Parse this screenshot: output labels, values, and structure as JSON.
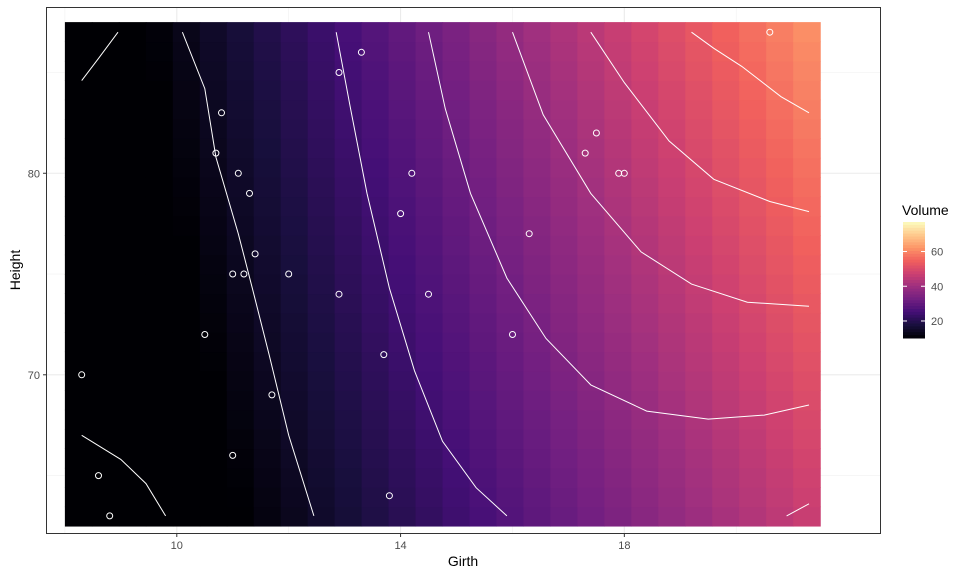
{
  "chart_data": {
    "type": "heatmap",
    "title": "",
    "xlabel": "Girth",
    "ylabel": "Height",
    "x_ticks": [
      10,
      14,
      18
    ],
    "y_ticks": [
      70,
      80
    ],
    "x_tick_labels": [
      "10",
      "14",
      "18"
    ],
    "y_tick_labels": [
      "70",
      "80"
    ],
    "xlim": [
      7.68,
      22.57
    ],
    "ylim": [
      62.15,
      88.2
    ],
    "grid": true,
    "fill": {
      "variable": "Volume",
      "model": "Volume ≈ -58 + 4.0·Girth + 0.36·Height + 0.03·(Girth-13.25)·(Height-76)",
      "x_range": [
        8,
        21.5
      ],
      "y_range": [
        62.5,
        87.5
      ],
      "grid_cols": 28,
      "grid_rows": 26,
      "palette": "magma",
      "palette_stops": [
        "#000004",
        "#180f3d",
        "#440f76",
        "#721f81",
        "#9e2f7f",
        "#cd4071",
        "#f1605d",
        "#fd9668",
        "#feca8d",
        "#fcfdbf"
      ]
    },
    "contours": {
      "color": "#ffffff",
      "lines": [
        [
          [
            8.3,
            84.6
          ],
          [
            8.6,
            85.7
          ],
          [
            8.95,
            87.0
          ]
        ],
        [
          [
            8.3,
            67.0
          ],
          [
            9.0,
            65.8
          ],
          [
            9.45,
            64.6
          ],
          [
            9.8,
            63.0
          ]
        ],
        [
          [
            10.1,
            87.0
          ],
          [
            10.5,
            84.2
          ],
          [
            10.7,
            80.8
          ],
          [
            11.1,
            77.0
          ],
          [
            11.35,
            74.3
          ],
          [
            11.65,
            71.0
          ],
          [
            12.0,
            67.0
          ],
          [
            12.45,
            63.0
          ]
        ],
        [
          [
            12.85,
            87.0
          ],
          [
            13.1,
            83.3
          ],
          [
            13.4,
            79.0
          ],
          [
            13.8,
            74.3
          ],
          [
            14.25,
            70.2
          ],
          [
            14.75,
            66.7
          ],
          [
            15.35,
            64.4
          ],
          [
            15.9,
            63.0
          ]
        ],
        [
          [
            14.5,
            87.0
          ],
          [
            14.8,
            83.2
          ],
          [
            15.25,
            79.0
          ],
          [
            15.9,
            74.8
          ],
          [
            16.6,
            71.8
          ],
          [
            17.4,
            69.5
          ],
          [
            18.4,
            68.2
          ],
          [
            19.5,
            67.8
          ],
          [
            20.5,
            68.0
          ],
          [
            21.3,
            68.5
          ]
        ],
        [
          [
            16.0,
            87.0
          ],
          [
            16.55,
            82.9
          ],
          [
            17.4,
            79.0
          ],
          [
            18.3,
            76.1
          ],
          [
            19.2,
            74.5
          ],
          [
            20.2,
            73.6
          ],
          [
            21.3,
            73.4
          ]
        ],
        [
          [
            17.4,
            87.0
          ],
          [
            18.0,
            84.5
          ],
          [
            18.8,
            81.6
          ],
          [
            19.6,
            79.7
          ],
          [
            20.6,
            78.6
          ],
          [
            21.3,
            78.1
          ]
        ],
        [
          [
            19.2,
            87.0
          ],
          [
            19.6,
            86.2
          ],
          [
            20.1,
            85.3
          ],
          [
            20.8,
            83.8
          ],
          [
            21.3,
            83.0
          ]
        ],
        [
          [
            20.9,
            63.0
          ],
          [
            21.3,
            63.6
          ]
        ]
      ]
    },
    "points": {
      "x": [
        8.3,
        8.6,
        8.8,
        10.5,
        10.7,
        10.8,
        11.0,
        11.0,
        11.1,
        11.2,
        11.3,
        11.4,
        11.7,
        12.0,
        12.9,
        12.9,
        13.3,
        13.7,
        13.8,
        14.0,
        14.2,
        14.5,
        16.0,
        16.3,
        17.3,
        17.5,
        17.9,
        18.0,
        20.6
      ],
      "y": [
        70,
        65,
        63,
        72,
        81,
        83,
        66,
        75,
        80,
        75,
        79,
        76,
        69,
        75,
        74,
        85,
        86,
        71,
        64,
        78,
        80,
        74,
        72,
        77,
        81,
        82,
        80,
        80,
        87
      ],
      "stroke": "#ffffff"
    },
    "legend": {
      "title": "Volume",
      "position": "right",
      "breaks": [
        20,
        40,
        60
      ],
      "labels": [
        "20",
        "40",
        "60"
      ],
      "range": [
        10.2,
        77.0
      ]
    }
  }
}
